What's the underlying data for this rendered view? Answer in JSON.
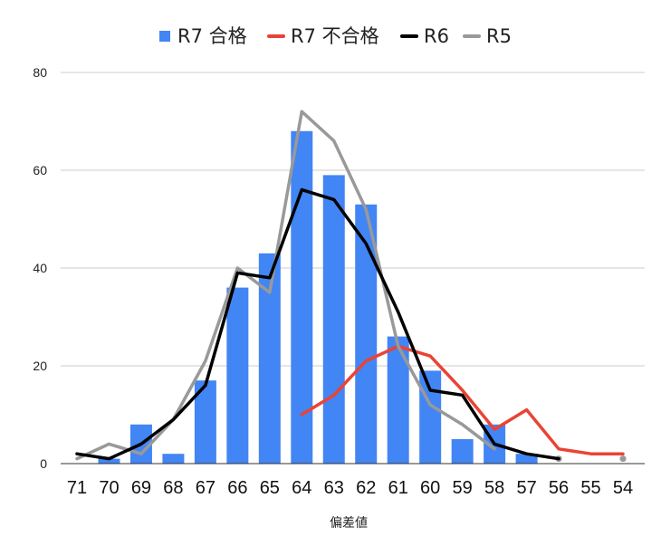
{
  "chart_data": {
    "type": "bar",
    "title": "",
    "xlabel": "偏差値",
    "ylabel": "",
    "ylim": [
      0,
      80
    ],
    "yticks": [
      0,
      20,
      40,
      60,
      80
    ],
    "grid": true,
    "legend_position": "top",
    "categories": [
      "71",
      "70",
      "69",
      "68",
      "67",
      "66",
      "65",
      "64",
      "63",
      "62",
      "61",
      "60",
      "59",
      "58",
      "57",
      "56",
      "55",
      "54"
    ],
    "series": [
      {
        "name": "R7 合格",
        "type": "bar",
        "color": "#4285f4",
        "values": [
          0,
          1,
          8,
          2,
          17,
          36,
          43,
          68,
          59,
          53,
          26,
          19,
          5,
          8,
          2,
          0,
          0,
          0
        ]
      },
      {
        "name": "R7 不合格",
        "type": "line",
        "color": "#ea4335",
        "values": [
          null,
          null,
          null,
          null,
          null,
          null,
          null,
          10,
          14,
          21,
          24,
          22,
          15,
          7,
          11,
          3,
          2,
          2
        ]
      },
      {
        "name": "R6",
        "type": "line",
        "color": "#000000",
        "values": [
          2,
          1,
          4,
          9,
          16,
          39,
          38,
          56,
          54,
          45,
          31,
          15,
          14,
          4,
          2,
          1,
          null,
          null
        ]
      },
      {
        "name": "R5",
        "type": "line",
        "color": "#999999",
        "values": [
          1,
          4,
          2,
          9,
          21,
          40,
          35,
          72,
          66,
          52,
          24,
          12,
          8,
          3,
          null,
          1,
          null,
          1
        ]
      }
    ]
  }
}
